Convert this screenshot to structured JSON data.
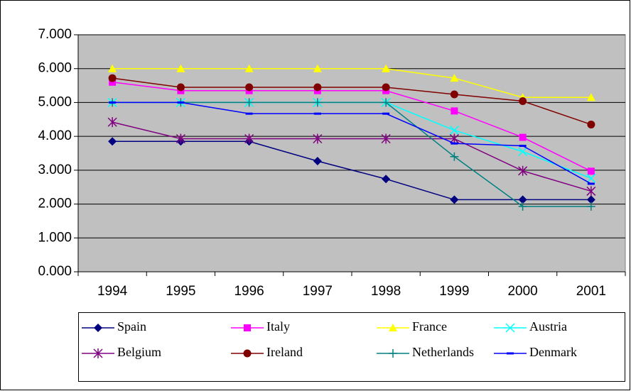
{
  "chart_data": {
    "type": "line",
    "categories": [
      "1994",
      "1995",
      "1996",
      "1997",
      "1998",
      "1999",
      "2000",
      "2001"
    ],
    "series": [
      {
        "name": "Spain",
        "color": "#000080",
        "marker": "diamond",
        "values": [
          3.85,
          3.85,
          3.85,
          3.27,
          2.74,
          2.13,
          2.13,
          2.13
        ]
      },
      {
        "name": "Italy",
        "color": "#ff00ff",
        "marker": "square",
        "values": [
          5.6,
          5.35,
          5.35,
          5.35,
          5.35,
          4.75,
          3.97,
          2.97
        ]
      },
      {
        "name": "France",
        "color": "#ffff00",
        "marker": "triangle",
        "values": [
          6,
          6,
          6,
          6,
          6,
          5.72,
          5.15,
          5.15
        ]
      },
      {
        "name": "Austria",
        "color": "#00ffff",
        "marker": "x",
        "values": [
          5,
          5,
          5,
          5,
          5,
          4.18,
          3.55,
          2.76
        ]
      },
      {
        "name": "Belgium",
        "color": "#800080",
        "marker": "star",
        "values": [
          4.42,
          3.93,
          3.93,
          3.93,
          3.93,
          3.93,
          2.98,
          2.38
        ]
      },
      {
        "name": "Ireland",
        "color": "#800000",
        "marker": "circle",
        "values": [
          5.72,
          5.45,
          5.45,
          5.45,
          5.45,
          5.24,
          5.04,
          4.35
        ]
      },
      {
        "name": "Netherlands",
        "color": "#008080",
        "marker": "plus",
        "values": [
          5,
          5,
          5,
          5,
          5,
          3.4,
          1.93,
          1.93
        ]
      },
      {
        "name": "Denmark",
        "color": "#0000ff",
        "marker": "dash",
        "values": [
          5,
          5,
          4.67,
          4.67,
          4.67,
          3.79,
          3.72,
          2.6
        ]
      }
    ],
    "ylim": [
      0,
      7
    ],
    "yticks": [
      {
        "value": 0,
        "label": "0.000"
      },
      {
        "value": 1,
        "label": "1.000"
      },
      {
        "value": 2,
        "label": "2.000"
      },
      {
        "value": 3,
        "label": "3.000"
      },
      {
        "value": 4,
        "label": "4.000"
      },
      {
        "value": 5,
        "label": "5.000"
      },
      {
        "value": 6,
        "label": "6.000"
      },
      {
        "value": 7,
        "label": "7.000"
      }
    ],
    "grid": true,
    "legend": "bottom"
  }
}
